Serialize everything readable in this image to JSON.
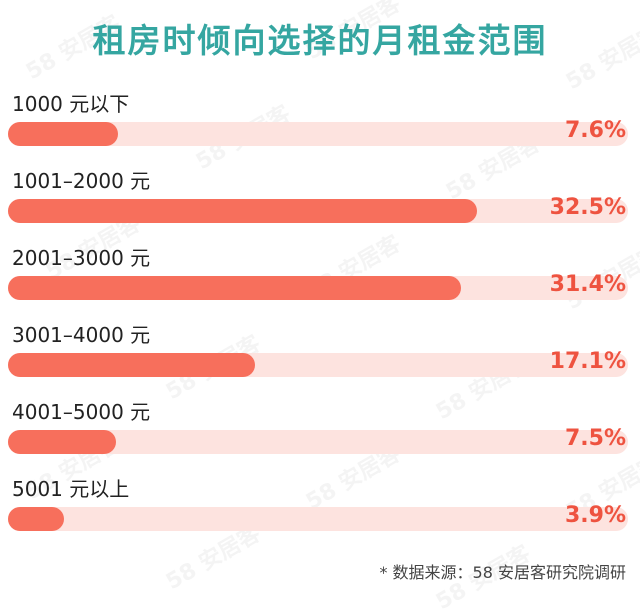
{
  "chart_data": {
    "type": "bar",
    "title": "租房时倾向选择的月租金范围",
    "categories": [
      "1000 元以下",
      "1001–2000 元",
      "2001–3000 元",
      "3001–4000 元",
      "4001–5000 元",
      "5001 元以上"
    ],
    "values": [
      7.6,
      32.5,
      31.4,
      17.1,
      7.5,
      3.9
    ],
    "value_labels": [
      "7.6%",
      "32.5%",
      "31.4%",
      "17.1%",
      "7.5%",
      "3.9%"
    ],
    "unit": "%",
    "xlim": [
      0,
      43
    ],
    "orientation": "horizontal",
    "grid": false,
    "colors": {
      "bar": "#f76f5c",
      "track": "#fde3df",
      "label": "#ee5340",
      "title": "#35a6a1"
    }
  },
  "source_note": "* 数据来源：58 安居客研究院调研",
  "watermark": "58 安居客"
}
